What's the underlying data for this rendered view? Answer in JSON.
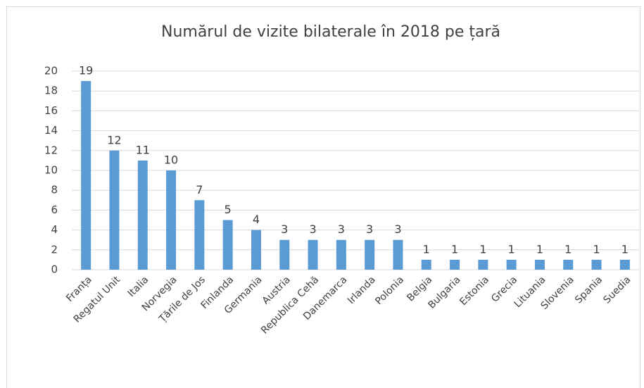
{
  "chart_data": {
    "type": "bar",
    "title": "Numărul de vizite bilaterale în 2018 pe țară",
    "categories": [
      "Franța",
      "Regatul Unit",
      "Italia",
      "Norvegia",
      "Țările de Jos",
      "Finlanda",
      "Germania",
      "Austria",
      "Republica Cehă",
      "Danemarca",
      "Irlanda",
      "Polonia",
      "Belgia",
      "Bulgaria",
      "Estonia",
      "Grecia",
      "Lituania",
      "Slovenia",
      "Spania",
      "Suedia"
    ],
    "values": [
      19,
      12,
      11,
      10,
      7,
      5,
      4,
      3,
      3,
      3,
      3,
      3,
      1,
      1,
      1,
      1,
      1,
      1,
      1,
      1
    ],
    "color": "#5b9bd5",
    "ylim": [
      0,
      20
    ],
    "yticks": [
      0,
      2,
      4,
      6,
      8,
      10,
      12,
      14,
      16,
      18,
      20
    ],
    "grid": true
  }
}
